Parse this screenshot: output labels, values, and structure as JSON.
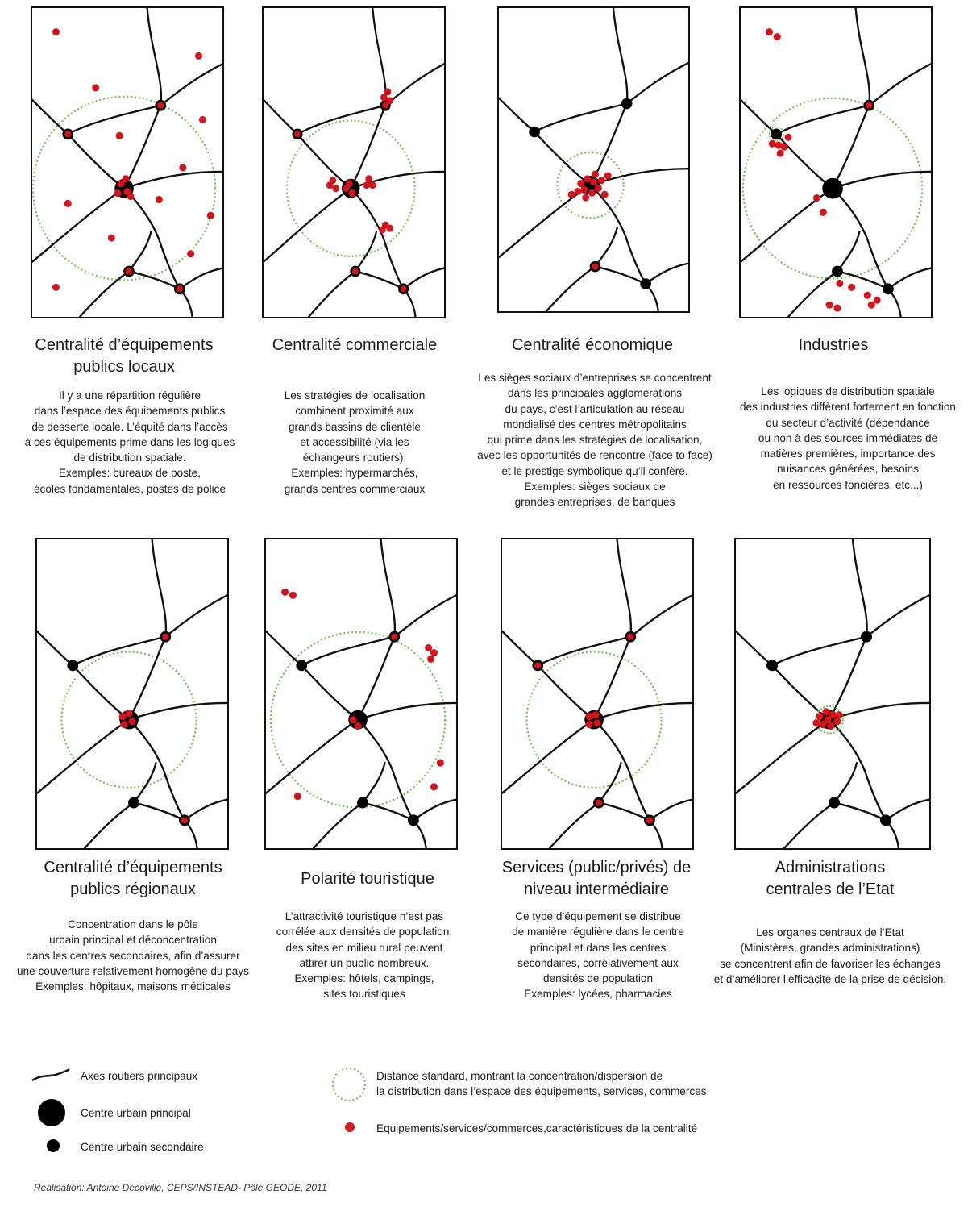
{
  "colors": {
    "road": "#111111",
    "urban_center": "#000000",
    "facility": "#d4141c",
    "standard_distance": "#6fbf4a"
  },
  "panels": [
    {
      "title": "Centralité d’équipements\npublics locaux",
      "description": "Il y a une répartition régulière\ndans l’espace des équipements publics\nde desserte locale. L’équité dans l’accès\nà ces équipements prime dans les logiques\nde distribution spatiale.\nExemples: bureaux de poste,\nécoles fondamentales, postes de police"
    },
    {
      "title": "Centralité commerciale",
      "description": "Les stratégies de localisation\ncombinent proximité aux\ngrands bassins de clientèle\net accessibilité (via les\néchangeurs routiers).\nExemples: hypermarchés,\ngrands centres commerciaux"
    },
    {
      "title": "Centralité économique",
      "description": "Les sièges sociaux d’entreprises se concentrent\ndans les principales agglomérations\ndu pays, c’est l’articulation au réseau\nmondialisé des centres métropolitains\nqui prime dans les stratégies de localisation,\navec les opportunités de rencontre (face to face)\net le prestige symbolique qu’il confère.\nExemples: sièges sociaux de\ngrandes entreprises, de banques"
    },
    {
      "title": "Industries",
      "description": "Les logiques de distribution spatiale\ndes industries diffèrent fortement en fonction\ndu secteur d’activité (dépendance\nou non à des sources immédiates de\nmatières premières, importance des\nnuisances générées, besoins\nen ressources foncières, etc...)"
    },
    {
      "title": "Centralité d’équipements\npublics régionaux",
      "description": "Concentration dans le pôle\nurbain principal et déconcentration\ndans les centres secondaires, afin d’assurer\nune couverture relativement homogène du pays\nExemples: hôpitaux, maisons médicales"
    },
    {
      "title": "Polarité touristique",
      "description": "L’attractivité touristique n’est pas\ncorrélée aux densités de population,\ndes sites en milieu rural peuvent\nattirer un public nombreux.\nExemples: hôtels, campings,\nsites touristiques"
    },
    {
      "title": "Services (public/privés) de\nniveau intermédiaire",
      "description": "Ce type d’équipement se distribue\nde manière régulière dans le centre\nprincipal et dans les centres\nsecondaires, corrélativement aux\ndensités de population\nExemples: lycées, pharmacies"
    },
    {
      "title": "Administrations\ncentrales de l’Etat",
      "description": "Les organes centraux de l’Etat\n(Ministères, grandes administrations)\nse concentrent afin de favoriser les échanges\net d’améliorer l’efficacité de la prise de décision."
    }
  ],
  "legend": {
    "roads": "Axes routiers principaux",
    "main_center": "Centre urbain principal",
    "secondary_center": "Centre urbain secondaire",
    "standard_distance": "Distance standard, montrant la concentration/dispersion de\nla distribution dans l’espace des équipements, services, commerces.",
    "facilities": "Equipements/services/commerces,caractéristiques de la centralité"
  },
  "credit": "Réalisation: Antoine Decoville, CEPS/INSTEAD- Pôle GEODE, 2011"
}
